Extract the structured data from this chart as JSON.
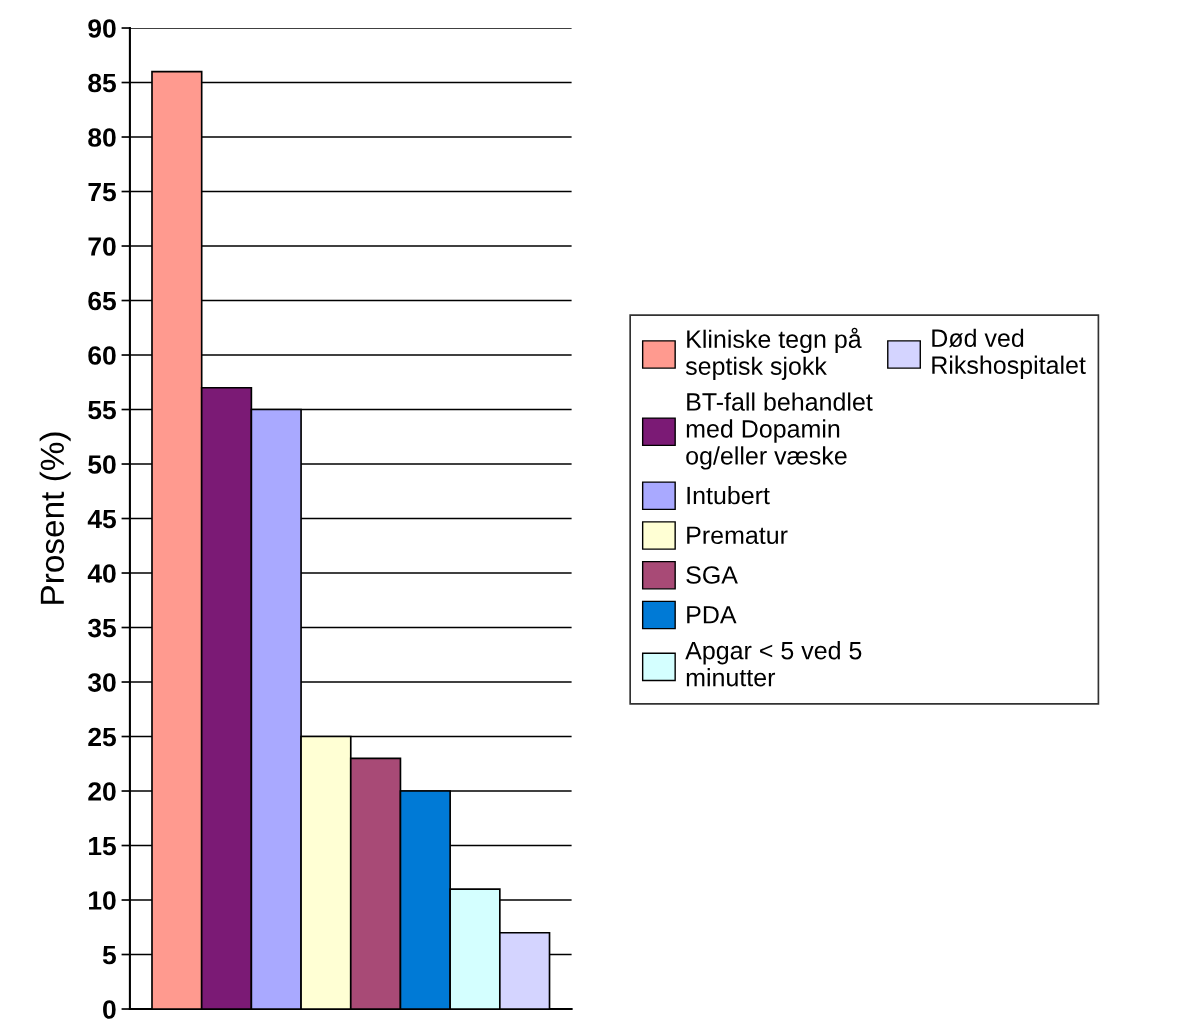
{
  "chart_data": {
    "type": "bar",
    "ylabel": "Prosent (%)",
    "categories": [
      null
    ],
    "series": [
      {
        "name": "Kliniske tegn på\nseptisk sjokk",
        "color": "#ff9a8f",
        "values": [
          86
        ]
      },
      {
        "name": "BT-fall behandlet\nmed Dopamin\nog/eller væske",
        "color": "#7b1a75",
        "values": [
          57
        ]
      },
      {
        "name": "Intubert",
        "color": "#a9a9ff",
        "values": [
          55
        ]
      },
      {
        "name": "Prematur",
        "color": "#ffffd4",
        "values": [
          25
        ]
      },
      {
        "name": "SGA",
        "color": "#a84a76",
        "values": [
          23
        ]
      },
      {
        "name": "PDA",
        "color": "#007ad6",
        "values": [
          20
        ]
      },
      {
        "name": "Apgar < 5 ved 5\nminutter",
        "color": "#d4ffff",
        "values": [
          11
        ]
      },
      {
        "name": "Død ved\nRikshospitalet",
        "color": "#d4d4ff",
        "values": [
          7
        ]
      }
    ],
    "ylim": [
      0,
      90
    ],
    "yticks": [
      0,
      5,
      10,
      15,
      20,
      25,
      30,
      35,
      40,
      45,
      50,
      55,
      60,
      65,
      70,
      75,
      80,
      85,
      90
    ],
    "grid": "y",
    "legend": "right",
    "tick_labels": "y"
  }
}
